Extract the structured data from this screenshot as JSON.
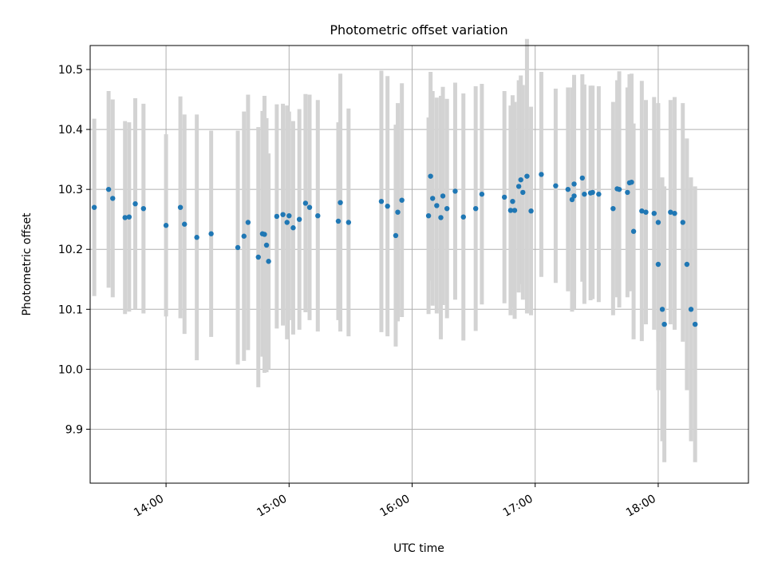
{
  "chart_data": {
    "type": "scatter",
    "title": "Photometric offset variation",
    "xlabel": "UTC time",
    "ylabel": "Photometric offset",
    "x_ticks": [
      "14:00",
      "15:00",
      "16:00",
      "17:00",
      "18:00"
    ],
    "y_ticks": [
      "9.9",
      "10.0",
      "10.1",
      "10.2",
      "10.3",
      "10.4",
      "10.5"
    ],
    "xlim": [
      "13:23",
      "18:44"
    ],
    "ylim": [
      9.81,
      10.54
    ],
    "grid": true,
    "errorbar_color": "#d3d3d3",
    "point_color": "#1f77b4",
    "series": [
      {
        "x": [
          "13:25",
          "13:32",
          "13:34",
          "13:40",
          "13:42",
          "13:45",
          "13:49",
          "14:00",
          "14:07",
          "14:09",
          "14:15",
          "14:22",
          "14:35",
          "14:38",
          "14:40",
          "14:45",
          "14:47",
          "14:48",
          "14:49",
          "14:50",
          "14:54",
          "14:57",
          "14:59",
          "15:00",
          "15:02",
          "15:05",
          "15:08",
          "15:10",
          "15:14",
          "15:24",
          "15:25",
          "15:29",
          "15:45",
          "15:48",
          "15:52",
          "15:53",
          "15:55",
          "16:08",
          "16:09",
          "16:10",
          "16:12",
          "16:14",
          "16:15",
          "16:17",
          "16:21",
          "16:25",
          "16:31",
          "16:34",
          "16:45",
          "16:48",
          "16:49",
          "16:50",
          "16:52",
          "16:53",
          "16:54",
          "16:56",
          "16:58",
          "17:03",
          "17:10",
          "17:16",
          "17:18",
          "17:19",
          "17:19",
          "17:23",
          "17:24",
          "17:27",
          "17:28",
          "17:31",
          "17:38",
          "17:40",
          "17:41",
          "17:45",
          "17:46",
          "17:47",
          "17:48",
          "17:52",
          "17:54",
          "17:58",
          "18:00",
          "18:00",
          "18:02",
          "18:03",
          "18:06",
          "18:08",
          "18:12",
          "18:14",
          "18:16",
          "18:18"
        ],
        "y": [
          10.27,
          10.3,
          10.285,
          10.253,
          10.254,
          10.276,
          10.268,
          10.24,
          10.27,
          10.242,
          10.22,
          10.226,
          10.203,
          10.222,
          10.245,
          10.187,
          10.226,
          10.225,
          10.207,
          10.18,
          10.255,
          10.258,
          10.245,
          10.256,
          10.236,
          10.25,
          10.277,
          10.27,
          10.256,
          10.247,
          10.278,
          10.245,
          10.28,
          10.272,
          10.223,
          10.262,
          10.282,
          10.256,
          10.322,
          10.285,
          10.273,
          10.253,
          10.289,
          10.268,
          10.297,
          10.254,
          10.268,
          10.292,
          10.287,
          10.265,
          10.28,
          10.265,
          10.305,
          10.316,
          10.295,
          10.322,
          10.264,
          10.325,
          10.306,
          10.3,
          10.283,
          10.289,
          10.309,
          10.319,
          10.292,
          10.294,
          10.295,
          10.292,
          10.268,
          10.301,
          10.3,
          10.295,
          10.311,
          10.312,
          10.23,
          10.264,
          10.262,
          10.26,
          10.245,
          10.175,
          10.1,
          10.075,
          10.262,
          10.26,
          10.245,
          10.175,
          10.1,
          10.075
        ],
        "yerr_low": [
          10.122,
          10.136,
          10.12,
          10.092,
          10.096,
          10.1,
          10.093,
          10.088,
          10.085,
          10.059,
          10.015,
          10.054,
          10.008,
          10.014,
          10.032,
          9.97,
          10.021,
          9.994,
          9.995,
          10.0,
          10.068,
          10.073,
          10.05,
          10.082,
          10.058,
          10.066,
          10.095,
          10.082,
          10.063,
          10.082,
          10.063,
          10.055,
          10.062,
          10.055,
          10.038,
          10.08,
          10.087,
          10.092,
          10.148,
          10.106,
          10.093,
          10.05,
          10.107,
          10.085,
          10.116,
          10.048,
          10.064,
          10.108,
          10.11,
          10.09,
          10.103,
          10.084,
          10.128,
          10.142,
          10.116,
          10.093,
          10.09,
          10.154,
          10.144,
          10.13,
          10.096,
          10.1,
          10.127,
          10.146,
          10.109,
          10.115,
          10.117,
          10.112,
          10.09,
          10.12,
          10.103,
          10.12,
          10.13,
          10.131,
          10.05,
          10.047,
          10.075,
          10.066,
          10.046,
          9.965,
          9.88,
          9.845,
          10.075,
          10.066,
          10.046,
          9.965,
          9.88,
          9.845
        ]
      }
    ]
  }
}
